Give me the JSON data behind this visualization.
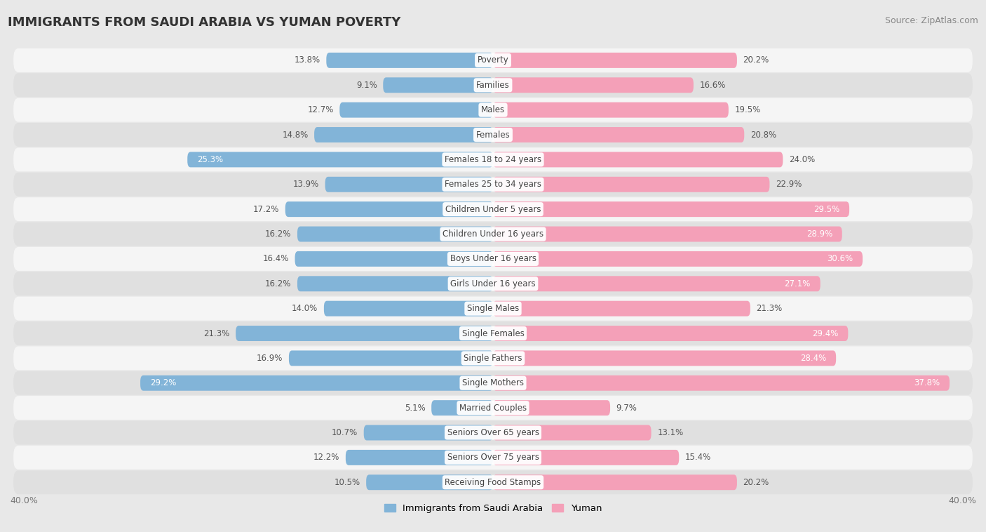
{
  "title": "IMMIGRANTS FROM SAUDI ARABIA VS YUMAN POVERTY",
  "source": "Source: ZipAtlas.com",
  "categories": [
    "Poverty",
    "Families",
    "Males",
    "Females",
    "Females 18 to 24 years",
    "Females 25 to 34 years",
    "Children Under 5 years",
    "Children Under 16 years",
    "Boys Under 16 years",
    "Girls Under 16 years",
    "Single Males",
    "Single Females",
    "Single Fathers",
    "Single Mothers",
    "Married Couples",
    "Seniors Over 65 years",
    "Seniors Over 75 years",
    "Receiving Food Stamps"
  ],
  "left_values": [
    13.8,
    9.1,
    12.7,
    14.8,
    25.3,
    13.9,
    17.2,
    16.2,
    16.4,
    16.2,
    14.0,
    21.3,
    16.9,
    29.2,
    5.1,
    10.7,
    12.2,
    10.5
  ],
  "right_values": [
    20.2,
    16.6,
    19.5,
    20.8,
    24.0,
    22.9,
    29.5,
    28.9,
    30.6,
    27.1,
    21.3,
    29.4,
    28.4,
    37.8,
    9.7,
    13.1,
    15.4,
    20.2
  ],
  "left_color": "#82b4d8",
  "right_color": "#f4a0b8",
  "bar_height": 0.62,
  "xlim": 40.0,
  "left_label": "Immigrants from Saudi Arabia",
  "right_label": "Yuman",
  "bg_color": "#e8e8e8",
  "row_color_light": "#f5f5f5",
  "row_color_dark": "#e0e0e0"
}
